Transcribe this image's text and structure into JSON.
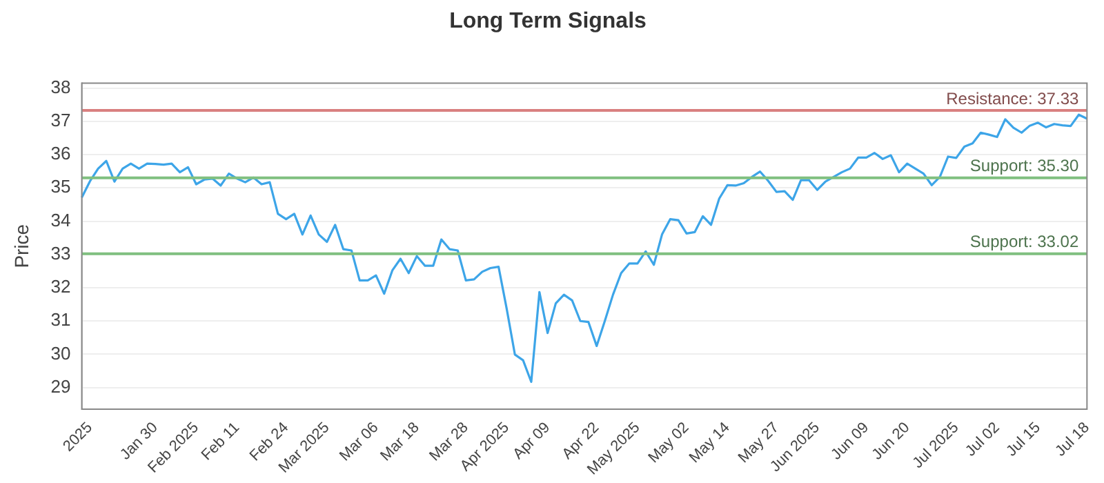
{
  "chart_data": {
    "type": "line",
    "title": "Long Term Signals",
    "ylabel": "Price",
    "categories": [
      null,
      "2025",
      null,
      null,
      null,
      null,
      null,
      null,
      null,
      "Jan 30",
      null,
      null,
      null,
      null,
      "Feb 2025",
      null,
      null,
      null,
      null,
      "Feb 11",
      null,
      null,
      null,
      null,
      null,
      "Feb 24",
      null,
      null,
      null,
      null,
      "Mar 2025",
      null,
      null,
      null,
      null,
      null,
      "Mar 06",
      null,
      null,
      null,
      null,
      "Mar 18",
      null,
      null,
      null,
      null,
      null,
      "Mar 28",
      null,
      null,
      null,
      null,
      "Apr 2025",
      null,
      null,
      null,
      null,
      "Apr 09",
      null,
      null,
      null,
      null,
      null,
      "Apr 22",
      null,
      null,
      null,
      null,
      "May 2025",
      null,
      null,
      null,
      null,
      null,
      "May 02",
      null,
      null,
      null,
      null,
      "May 14",
      null,
      null,
      null,
      null,
      null,
      "May 27",
      null,
      null,
      null,
      null,
      "Jun 2025",
      null,
      null,
      null,
      null,
      null,
      "Jun 09",
      null,
      null,
      null,
      null,
      "Jun 20",
      null,
      null,
      null,
      null,
      null,
      "Jul 2025",
      null,
      null,
      null,
      null,
      "Jul 02",
      null,
      null,
      null,
      null,
      "Jul 15",
      null,
      null,
      null,
      null,
      null,
      "Jul 18"
    ],
    "values": [
      34.71,
      35.2,
      35.58,
      35.81,
      35.19,
      35.58,
      35.73,
      35.58,
      35.73,
      35.72,
      35.7,
      35.73,
      35.47,
      35.62,
      35.11,
      35.25,
      35.28,
      35.07,
      35.43,
      35.28,
      35.17,
      35.31,
      35.11,
      35.17,
      34.22,
      34.06,
      34.22,
      33.6,
      34.17,
      33.6,
      33.38,
      33.89,
      33.16,
      33.12,
      32.22,
      32.22,
      32.37,
      31.82,
      32.52,
      32.87,
      32.44,
      32.95,
      32.66,
      32.66,
      33.45,
      33.16,
      33.12,
      32.22,
      32.25,
      32.48,
      32.59,
      32.63,
      31.36,
      29.99,
      29.82,
      29.17,
      31.87,
      30.64,
      31.53,
      31.79,
      31.62,
      31.0,
      30.97,
      30.25,
      31.0,
      31.79,
      32.44,
      32.73,
      32.73,
      33.09,
      32.69,
      33.6,
      34.06,
      34.03,
      33.63,
      33.67,
      34.15,
      33.89,
      34.68,
      35.08,
      35.07,
      35.14,
      35.33,
      35.49,
      35.21,
      34.88,
      34.9,
      34.64,
      35.23,
      35.23,
      34.94,
      35.19,
      35.33,
      35.47,
      35.58,
      35.91,
      35.91,
      36.05,
      35.87,
      35.98,
      35.47,
      35.73,
      35.58,
      35.43,
      35.08,
      35.33,
      35.94,
      35.9,
      36.24,
      36.34,
      36.66,
      36.6,
      36.53,
      37.06,
      36.81,
      36.66,
      36.87,
      36.96,
      36.82,
      36.92,
      36.88,
      36.86,
      37.2,
      37.08
    ],
    "color": "#3da5e8",
    "ylim": [
      28.35,
      38.15
    ],
    "yticks": [
      29,
      30,
      31,
      32,
      33,
      34,
      35,
      36,
      37,
      38
    ],
    "grid": "y",
    "marker": "none",
    "ref_lines": [
      {
        "axis": "y",
        "value": 37.33,
        "label": "Resistance: 37.33",
        "color": "#d98080"
      },
      {
        "axis": "y",
        "value": 35.3,
        "label": "Support: 35.30",
        "color": "#80c080"
      },
      {
        "axis": "y",
        "value": 33.02,
        "label": "Support: 33.02",
        "color": "#80c080"
      }
    ]
  }
}
